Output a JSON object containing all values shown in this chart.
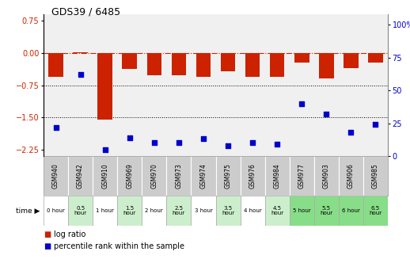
{
  "title": "GDS39 / 6485",
  "samples": [
    "GSM940",
    "GSM942",
    "GSM910",
    "GSM969",
    "GSM970",
    "GSM973",
    "GSM974",
    "GSM975",
    "GSM976",
    "GSM984",
    "GSM977",
    "GSM903",
    "GSM906",
    "GSM985"
  ],
  "time_labels": [
    "0 hour",
    "0.5\nhour",
    "1 hour",
    "1.5\nhour",
    "2 hour",
    "2.5\nhour",
    "3 hour",
    "3.5\nhour",
    "4 hour",
    "4.5\nhour",
    "5 hour",
    "5.5\nhour",
    "6 hour",
    "6.5\nhour"
  ],
  "log_ratio": [
    -0.55,
    0.02,
    -1.55,
    -0.38,
    -0.52,
    -0.52,
    -0.55,
    -0.42,
    -0.55,
    -0.56,
    -0.22,
    -0.6,
    -0.35,
    -0.22
  ],
  "percentile": [
    22,
    62,
    5,
    14,
    10,
    10,
    13,
    8,
    10,
    9,
    40,
    32,
    18,
    24
  ],
  "bar_color": "#cc2200",
  "dot_color": "#0000cc",
  "bg_color": "#ffffff",
  "plot_bg": "#f0f0f0",
  "ylim_left": [
    -2.4,
    0.9
  ],
  "ylim_right": [
    0,
    108
  ],
  "yticks_left": [
    0.75,
    0,
    -0.75,
    -1.5,
    -2.25
  ],
  "yticks_right": [
    100,
    75,
    50,
    25,
    0
  ],
  "hlines": [
    -0.75,
    -1.5
  ],
  "bar_width": 0.6,
  "time_white": "#ffffff",
  "time_light_green": "#cceecc",
  "time_dark_green": "#88dd88",
  "gsm_bg": "#cccccc",
  "gsm_border": "#ffffff",
  "time_border": "#aaaaaa",
  "legend_red_label": "log ratio",
  "legend_blue_label": "percentile rank within the sample"
}
